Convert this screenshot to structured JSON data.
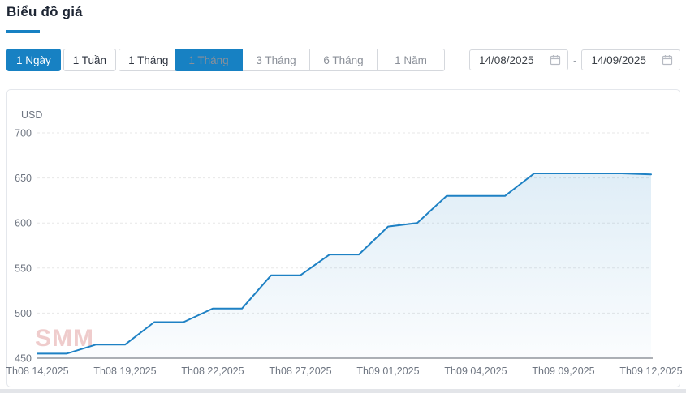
{
  "page": {
    "title": "Biểu đồ giá"
  },
  "colors": {
    "accent": "#1781c3"
  },
  "toolbar": {
    "granularity_buttons": [
      {
        "label": "1 Ngày",
        "active": true
      },
      {
        "label": "1 Tuần",
        "active": false
      },
      {
        "label": "1 Tháng",
        "active": false
      }
    ],
    "range_buttons": [
      {
        "label": "1 Tháng",
        "active": true
      },
      {
        "label": "3 Tháng",
        "active": false
      },
      {
        "label": "6 Tháng",
        "active": false
      },
      {
        "label": "1 Năm",
        "active": false
      }
    ],
    "date_from": "14/08/2025",
    "date_separator": "-",
    "date_to": "14/09/2025",
    "calendar_icon": "calendar-icon"
  },
  "chart_data": {
    "type": "line",
    "title": "",
    "unit_label": "USD",
    "x": [
      "Th08 14,2025",
      "Th08 15,2025",
      "Th08 18,2025",
      "Th08 19,2025",
      "Th08 20,2025",
      "Th08 21,2025",
      "Th08 22,2025",
      "Th08 25,2025",
      "Th08 26,2025",
      "Th08 27,2025",
      "Th08 28,2025",
      "Th08 29,2025",
      "Th09 01,2025",
      "Th09 02,2025",
      "Th09 03,2025",
      "Th09 04,2025",
      "Th09 05,2025",
      "Th09 08,2025",
      "Th09 09,2025",
      "Th09 10,2025",
      "Th09 11,2025",
      "Th09 12,2025"
    ],
    "values": [
      455,
      455,
      465,
      465,
      490,
      490,
      505,
      505,
      542,
      542,
      565,
      565,
      596,
      600,
      630,
      630,
      630,
      655,
      655,
      655,
      655,
      654
    ],
    "x_tick_indices": [
      0,
      3,
      6,
      9,
      12,
      15,
      18,
      21
    ],
    "x_tick_labels": [
      "Th08 14,2025",
      "Th08 19,2025",
      "Th08 22,2025",
      "Th08 27,2025",
      "Th09 01,2025",
      "Th09 04,2025",
      "Th09 09,2025",
      "Th09 12,2025"
    ],
    "y_ticks": [
      450,
      500,
      550,
      600,
      650,
      700
    ],
    "ylim": [
      450,
      700
    ],
    "grid": "dashed-horizontal",
    "legend": "none",
    "line_color": "#1e81c4",
    "area_top_color": "rgba(30,129,196,0.14)",
    "area_bottom_color": "rgba(30,129,196,0.02)",
    "axis_line_color": "#5b616b",
    "grid_color": "#e7e7e7",
    "tick_text_color": "#6f7682",
    "watermark": "SMM",
    "watermark_color": "rgba(214,120,120,0.38)"
  }
}
